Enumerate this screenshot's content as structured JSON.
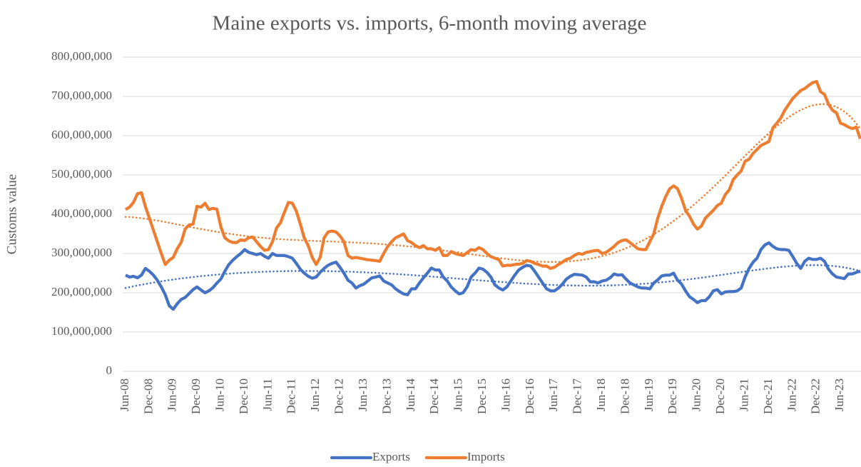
{
  "chart_data": {
    "type": "line",
    "title": "Maine exports vs. imports, 6-month moving average",
    "y_label": "Customs value",
    "categories": [
      "Jun-08",
      null,
      null,
      null,
      null,
      null,
      "Dec-08",
      null,
      null,
      null,
      null,
      null,
      "Jun-09",
      null,
      null,
      null,
      null,
      null,
      "Dec-09",
      null,
      null,
      null,
      null,
      null,
      "Jun-10",
      null,
      null,
      null,
      null,
      null,
      "Dec-10",
      null,
      null,
      null,
      null,
      null,
      "Jun-11",
      null,
      null,
      null,
      null,
      null,
      "Dec-11",
      null,
      null,
      null,
      null,
      null,
      "Jun-12",
      null,
      null,
      null,
      null,
      null,
      "Dec-12",
      null,
      null,
      null,
      null,
      null,
      "Jun-13",
      null,
      null,
      null,
      null,
      null,
      "Dec-13",
      null,
      null,
      null,
      null,
      null,
      "Jun-14",
      null,
      null,
      null,
      null,
      null,
      "Dec-14",
      null,
      null,
      null,
      null,
      null,
      "Jun-15",
      null,
      null,
      null,
      null,
      null,
      "Dec-15",
      null,
      null,
      null,
      null,
      null,
      "Jun-16",
      null,
      null,
      null,
      null,
      null,
      "Dec-16",
      null,
      null,
      null,
      null,
      null,
      "Jun-17",
      null,
      null,
      null,
      null,
      null,
      "Dec-17",
      null,
      null,
      null,
      null,
      null,
      "Jun-18",
      null,
      null,
      null,
      null,
      null,
      "Dec-18",
      null,
      null,
      null,
      null,
      null,
      "Jun-19",
      null,
      null,
      null,
      null,
      null,
      "Dec-19",
      null,
      null,
      null,
      null,
      null,
      "Jun-20",
      null,
      null,
      null,
      null,
      null,
      "Dec-20",
      null,
      null,
      null,
      null,
      null,
      "Jun-21",
      null,
      null,
      null,
      null,
      null,
      "Dec-21",
      null,
      null,
      null,
      null,
      null,
      "Jun-22",
      null,
      null,
      null,
      null,
      null,
      "Dec-22",
      null,
      null,
      null,
      null,
      null,
      "Jun-23",
      null,
      null,
      null,
      null,
      null
    ],
    "series": [
      {
        "name": "Exports",
        "color": "#4472c4",
        "trendline": {
          "type": "polynomial",
          "order": 6,
          "style": "dotted"
        },
        "values": [
          245000000.0,
          240000000.0,
          242000000.0,
          238000000.0,
          245000000.0,
          262000000.0,
          255000000.0,
          245000000.0,
          232000000.0,
          215000000.0,
          195000000.0,
          167000000.0,
          158000000.0,
          172000000.0,
          183000000.0,
          188000000.0,
          198000000.0,
          208000000.0,
          215000000.0,
          207000000.0,
          200000000.0,
          205000000.0,
          213000000.0,
          225000000.0,
          235000000.0,
          255000000.0,
          272000000.0,
          283000000.0,
          292000000.0,
          300000000.0,
          310000000.0,
          303000000.0,
          300000000.0,
          297000000.0,
          300000000.0,
          293000000.0,
          288000000.0,
          300000000.0,
          295000000.0,
          295000000.0,
          295000000.0,
          292000000.0,
          288000000.0,
          275000000.0,
          260000000.0,
          250000000.0,
          242000000.0,
          237000000.0,
          240000000.0,
          252000000.0,
          262000000.0,
          270000000.0,
          275000000.0,
          278000000.0,
          265000000.0,
          250000000.0,
          232000000.0,
          225000000.0,
          212000000.0,
          218000000.0,
          222000000.0,
          230000000.0,
          238000000.0,
          240000000.0,
          243000000.0,
          230000000.0,
          225000000.0,
          220000000.0,
          210000000.0,
          203000000.0,
          197000000.0,
          195000000.0,
          210000000.0,
          210000000.0,
          225000000.0,
          238000000.0,
          250000000.0,
          263000000.0,
          258000000.0,
          258000000.0,
          240000000.0,
          230000000.0,
          215000000.0,
          205000000.0,
          197000000.0,
          200000000.0,
          215000000.0,
          240000000.0,
          250000000.0,
          263000000.0,
          260000000.0,
          252000000.0,
          240000000.0,
          220000000.0,
          212000000.0,
          207000000.0,
          215000000.0,
          230000000.0,
          245000000.0,
          258000000.0,
          265000000.0,
          270000000.0,
          268000000.0,
          255000000.0,
          240000000.0,
          225000000.0,
          210000000.0,
          205000000.0,
          205000000.0,
          212000000.0,
          222000000.0,
          235000000.0,
          242000000.0,
          247000000.0,
          246000000.0,
          245000000.0,
          240000000.0,
          228000000.0,
          228000000.0,
          225000000.0,
          230000000.0,
          232000000.0,
          238000000.0,
          248000000.0,
          245000000.0,
          246000000.0,
          235000000.0,
          225000000.0,
          220000000.0,
          215000000.0,
          212000000.0,
          212000000.0,
          210000000.0,
          225000000.0,
          233000000.0,
          243000000.0,
          245000000.0,
          245000000.0,
          250000000.0,
          232000000.0,
          222000000.0,
          205000000.0,
          190000000.0,
          183000000.0,
          175000000.0,
          180000000.0,
          180000000.0,
          190000000.0,
          205000000.0,
          208000000.0,
          197000000.0,
          202000000.0,
          203000000.0,
          203000000.0,
          205000000.0,
          212000000.0,
          240000000.0,
          262000000.0,
          278000000.0,
          288000000.0,
          310000000.0,
          322000000.0,
          327000000.0,
          318000000.0,
          312000000.0,
          310000000.0,
          310000000.0,
          308000000.0,
          292000000.0,
          275000000.0,
          262000000.0,
          280000000.0,
          288000000.0,
          285000000.0,
          285000000.0,
          288000000.0,
          280000000.0,
          260000000.0,
          248000000.0,
          240000000.0,
          238000000.0,
          236000000.0,
          248000000.0,
          248000000.0,
          252000000.0,
          255000000.0
        ]
      },
      {
        "name": "Imports",
        "color": "#ed7d31",
        "trendline": {
          "type": "polynomial",
          "order": 6,
          "style": "dotted"
        },
        "values": [
          412000000.0,
          418000000.0,
          430000000.0,
          452000000.0,
          455000000.0,
          420000000.0,
          390000000.0,
          360000000.0,
          330000000.0,
          300000000.0,
          272000000.0,
          283000000.0,
          290000000.0,
          312000000.0,
          328000000.0,
          362000000.0,
          373000000.0,
          375000000.0,
          420000000.0,
          418000000.0,
          428000000.0,
          412000000.0,
          415000000.0,
          413000000.0,
          368000000.0,
          340000000.0,
          332000000.0,
          328000000.0,
          328000000.0,
          335000000.0,
          333000000.0,
          340000000.0,
          342000000.0,
          330000000.0,
          318000000.0,
          308000000.0,
          310000000.0,
          330000000.0,
          365000000.0,
          378000000.0,
          405000000.0,
          430000000.0,
          428000000.0,
          408000000.0,
          375000000.0,
          340000000.0,
          320000000.0,
          290000000.0,
          272000000.0,
          290000000.0,
          340000000.0,
          355000000.0,
          357000000.0,
          355000000.0,
          345000000.0,
          330000000.0,
          295000000.0,
          288000000.0,
          290000000.0,
          288000000.0,
          286000000.0,
          284000000.0,
          283000000.0,
          282000000.0,
          280000000.0,
          300000000.0,
          318000000.0,
          330000000.0,
          340000000.0,
          345000000.0,
          350000000.0,
          333000000.0,
          328000000.0,
          320000000.0,
          315000000.0,
          320000000.0,
          312000000.0,
          312000000.0,
          308000000.0,
          315000000.0,
          295000000.0,
          295000000.0,
          305000000.0,
          300000000.0,
          297000000.0,
          295000000.0,
          302000000.0,
          310000000.0,
          308000000.0,
          315000000.0,
          310000000.0,
          300000000.0,
          292000000.0,
          288000000.0,
          284000000.0,
          268000000.0,
          270000000.0,
          270000000.0,
          272000000.0,
          273000000.0,
          275000000.0,
          282000000.0,
          280000000.0,
          275000000.0,
          272000000.0,
          268000000.0,
          268000000.0,
          262000000.0,
          265000000.0,
          272000000.0,
          278000000.0,
          285000000.0,
          288000000.0,
          295000000.0,
          300000000.0,
          298000000.0,
          303000000.0,
          305000000.0,
          307000000.0,
          308000000.0,
          300000000.0,
          303000000.0,
          310000000.0,
          318000000.0,
          328000000.0,
          333000000.0,
          335000000.0,
          328000000.0,
          320000000.0,
          312000000.0,
          310000000.0,
          310000000.0,
          330000000.0,
          350000000.0,
          390000000.0,
          420000000.0,
          445000000.0,
          465000000.0,
          472000000.0,
          465000000.0,
          440000000.0,
          410000000.0,
          395000000.0,
          375000000.0,
          362000000.0,
          370000000.0,
          390000000.0,
          400000000.0,
          410000000.0,
          422000000.0,
          428000000.0,
          450000000.0,
          462000000.0,
          488000000.0,
          500000000.0,
          510000000.0,
          535000000.0,
          540000000.0,
          555000000.0,
          565000000.0,
          575000000.0,
          580000000.0,
          585000000.0,
          620000000.0,
          632000000.0,
          645000000.0,
          665000000.0,
          680000000.0,
          695000000.0,
          705000000.0,
          715000000.0,
          720000000.0,
          728000000.0,
          735000000.0,
          738000000.0,
          712000000.0,
          705000000.0,
          680000000.0,
          665000000.0,
          658000000.0,
          632000000.0,
          628000000.0,
          622000000.0,
          618000000.0,
          622000000.0,
          592000000.0
        ]
      }
    ],
    "ylim": [
      0,
      800000000
    ],
    "yticks": [
      0,
      {
        "value": 100000000,
        "label": "100,000,000"
      },
      {
        "value": 200000000,
        "label": "200,000,000"
      },
      {
        "value": 300000000,
        "label": "300,000,000"
      },
      {
        "value": 400000000,
        "label": "400,000,000"
      },
      {
        "value": 500000000,
        "label": "500,000,000"
      },
      {
        "value": 600000000,
        "label": "600,000,000"
      },
      {
        "value": 700000000,
        "label": "700,000,000"
      },
      {
        "value": 800000000,
        "label": "800,000,000"
      }
    ],
    "grid": true,
    "legend": "bottom"
  }
}
